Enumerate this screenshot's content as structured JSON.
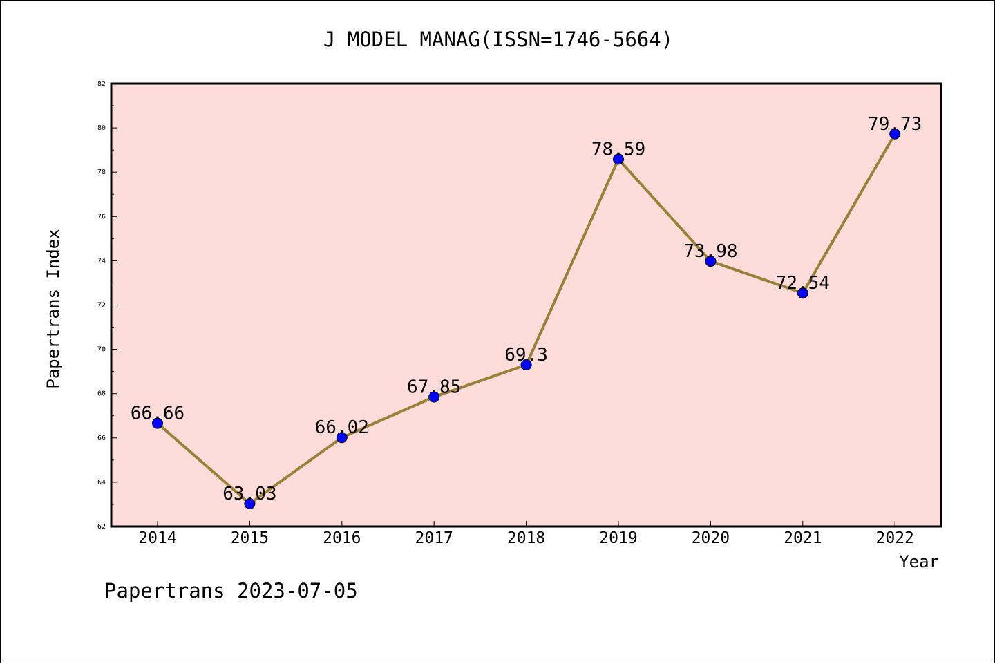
{
  "chart_data": {
    "type": "line",
    "title": "J MODEL MANAG(ISSN=1746-5664)",
    "xlabel": "Year",
    "ylabel": "Papertrans Index",
    "x": [
      "2014",
      "2015",
      "2016",
      "2017",
      "2018",
      "2019",
      "2020",
      "2021",
      "2022"
    ],
    "values": [
      66.66,
      63.03,
      66.02,
      67.85,
      69.3,
      78.59,
      73.98,
      72.54,
      79.73
    ],
    "data_labels": [
      "66.66",
      "63.03",
      "66.02",
      "67.85",
      "69.3",
      "78.59",
      "73.98",
      "72.54",
      "79.73"
    ],
    "ylim": [
      62,
      82
    ],
    "yticks": [
      "62",
      "64",
      "66",
      "68",
      "70",
      "72",
      "74",
      "76",
      "78",
      "80",
      "82"
    ],
    "grid": false,
    "colors": {
      "plot_background": "#fddcd9",
      "line": "#9a8038",
      "marker": "#0000ff",
      "marker_edge": "#000000"
    }
  },
  "footer": "Papertrans 2023-07-05"
}
